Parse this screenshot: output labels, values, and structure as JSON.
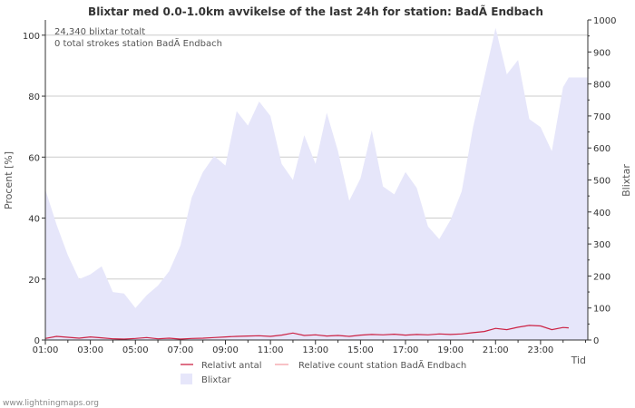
{
  "chart_data": {
    "type": "area",
    "title": "Blixtar med 0.0-1.0km avvikelse of the last 24h for station: BadÃ Endbach",
    "info_lines": [
      "24,340 blixtar totalt",
      "0 total strokes station BadÃ Endbach"
    ],
    "ylabel_left": "Procent   [%]",
    "ylabel_right": "Blixtar",
    "xlabel": "Tid",
    "ylim_left": [
      0,
      105
    ],
    "ylim_right": [
      0,
      1000
    ],
    "yticks_left": [
      0,
      20,
      40,
      60,
      80,
      100
    ],
    "yticks_right": [
      0,
      100,
      200,
      300,
      400,
      500,
      600,
      700,
      800,
      900,
      1000
    ],
    "xlim": [
      1,
      25.1
    ],
    "x_tick_labels": [
      "01:00",
      "03:00",
      "05:00",
      "07:00",
      "09:00",
      "11:00",
      "13:00",
      "15:00",
      "17:00",
      "19:00",
      "21:00",
      "23:00"
    ],
    "x_tick_hours": [
      1,
      3,
      5,
      7,
      9,
      11,
      13,
      15,
      17,
      19,
      21,
      23
    ],
    "series": [
      {
        "name": "Blixtar",
        "axis": "right",
        "color": "#e6e6fa",
        "x": [
          1.0,
          1.5,
          2.0,
          2.5,
          3.0,
          3.5,
          4.0,
          4.5,
          5.0,
          5.5,
          6.0,
          6.5,
          7.0,
          7.5,
          8.0,
          8.5,
          9.0,
          9.5,
          10.0,
          10.5,
          11.0,
          11.5,
          12.0,
          12.5,
          13.0,
          13.5,
          14.0,
          14.5,
          15.0,
          15.5,
          16.0,
          16.5,
          17.0,
          17.5,
          18.0,
          18.5,
          19.0,
          19.5,
          20.0,
          20.5,
          21.0,
          21.5,
          22.0,
          22.5,
          23.0,
          23.5,
          24.0,
          24.25,
          25.1
        ],
        "values": [
          470,
          360,
          265,
          190,
          205,
          230,
          150,
          145,
          100,
          140,
          170,
          215,
          295,
          445,
          525,
          575,
          545,
          715,
          670,
          745,
          700,
          550,
          500,
          640,
          550,
          710,
          590,
          435,
          505,
          655,
          480,
          455,
          525,
          475,
          355,
          315,
          375,
          465,
          665,
          820,
          975,
          830,
          875,
          690,
          665,
          590,
          790,
          820,
          820
        ]
      },
      {
        "name": "Relativt antal",
        "axis": "left",
        "color": "#cc2244",
        "x": [
          1.0,
          1.5,
          2.0,
          2.5,
          3.0,
          3.5,
          4.0,
          4.5,
          5.0,
          5.5,
          6.0,
          6.5,
          7.0,
          7.5,
          8.0,
          8.5,
          9.0,
          9.5,
          10.0,
          10.5,
          11.0,
          11.5,
          12.0,
          12.5,
          13.0,
          13.5,
          14.0,
          14.5,
          15.0,
          15.5,
          16.0,
          16.5,
          17.0,
          17.5,
          18.0,
          18.5,
          19.0,
          19.5,
          20.0,
          20.5,
          21.0,
          21.5,
          22.0,
          22.5,
          23.0,
          23.5,
          24.0,
          24.25
        ],
        "values": [
          0.5,
          1.2,
          0.9,
          0.6,
          1.0,
          0.7,
          0.4,
          0.3,
          0.5,
          0.8,
          0.4,
          0.6,
          0.3,
          0.5,
          0.6,
          0.8,
          1.0,
          1.2,
          1.3,
          1.4,
          1.2,
          1.6,
          2.3,
          1.5,
          1.7,
          1.3,
          1.5,
          1.2,
          1.6,
          1.8,
          1.7,
          1.9,
          1.6,
          1.8,
          1.7,
          2.0,
          1.8,
          2.0,
          2.4,
          2.8,
          3.8,
          3.4,
          4.2,
          4.8,
          4.6,
          3.4,
          4.1,
          4.0
        ]
      },
      {
        "name": "Relative count station BadÃ Endbach",
        "axis": "left",
        "color": "#f4a0a8",
        "x": [],
        "values": []
      }
    ],
    "watermark": "www.lightningmaps.org"
  }
}
